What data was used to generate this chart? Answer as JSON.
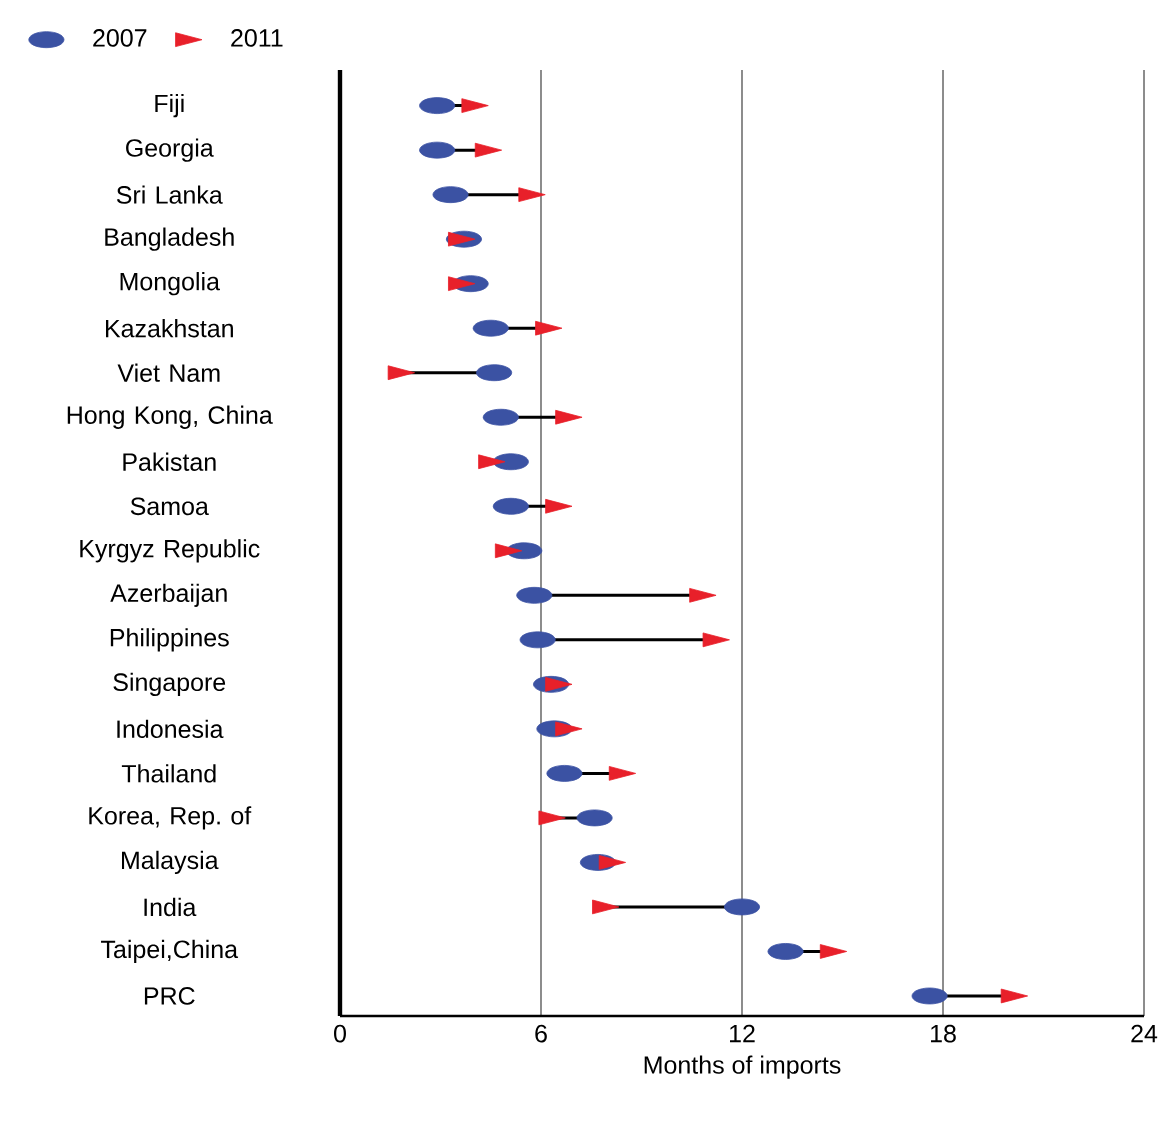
{
  "chart_data": {
    "type": "scatter",
    "orientation": "horizontal",
    "xlabel": "Months of imports",
    "categories": [
      "Fiji",
      "Georgia",
      "Sri Lanka",
      "Bangladesh",
      "Mongolia",
      "Kazakhstan",
      "Viet Nam",
      "Hong Kong, China",
      "Pakistan",
      "Samoa",
      "Kyrgyz Republic",
      "Azerbaijan",
      "Philippines",
      "Singapore",
      "Indonesia",
      "Thailand",
      "Korea, Rep. of",
      "Malaysia",
      "India",
      "Taipei,China",
      "PRC"
    ],
    "series": [
      {
        "name": "2007",
        "color": "#3b52a3",
        "marker": "circle",
        "values": [
          2.9,
          2.9,
          3.3,
          3.7,
          3.9,
          4.5,
          4.6,
          4.8,
          5.1,
          5.1,
          5.5,
          5.8,
          5.9,
          6.3,
          6.4,
          6.7,
          7.6,
          7.7,
          12.0,
          13.3,
          17.6
        ]
      },
      {
        "name": "2011",
        "color": "#e8202a",
        "marker": "triangle",
        "values": [
          3.9,
          4.3,
          5.6,
          3.5,
          3.5,
          6.1,
          1.7,
          6.7,
          4.4,
          6.4,
          4.9,
          10.7,
          11.1,
          6.4,
          6.7,
          8.3,
          6.2,
          8.0,
          7.8,
          14.6,
          20.0
        ]
      }
    ],
    "xlim": [
      0,
      24
    ],
    "xticks": [
      0,
      6,
      12,
      18,
      24
    ],
    "grid": "x",
    "legend": "top left"
  }
}
